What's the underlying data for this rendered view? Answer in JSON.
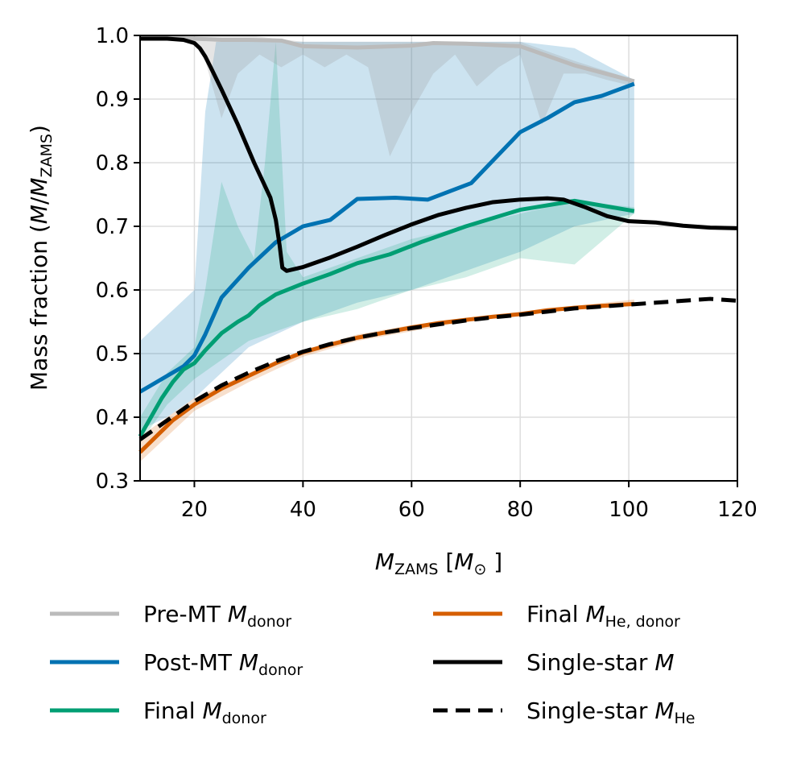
{
  "chart_data": {
    "type": "line",
    "title": "",
    "xlabel": {
      "base": "M",
      "sub": "ZAMS",
      "unit_open": " [",
      "unit_base": "M",
      "unit_sub": "⊙",
      "unit_close": " ]"
    },
    "ylabel": {
      "prefix": "Mass fraction (",
      "base1": "M",
      "slash": "/",
      "base2": "M",
      "sub": "ZAMS",
      "close": ")"
    },
    "xlim": [
      10,
      120
    ],
    "ylim": [
      0.3,
      1.0
    ],
    "xticks": [
      20,
      40,
      60,
      80,
      100,
      120
    ],
    "yticks": [
      0.3,
      0.4,
      0.5,
      0.6,
      0.7,
      0.8,
      0.9,
      1.0
    ],
    "xtick_labels": [
      "20",
      "40",
      "60",
      "80",
      "100",
      "120"
    ],
    "ytick_labels": [
      "0.3",
      "0.4",
      "0.5",
      "0.6",
      "0.7",
      "0.8",
      "0.9",
      "1.0"
    ],
    "grid": true,
    "legend_position": "below",
    "bands": [
      {
        "name": "post-mt-range",
        "color": "#0072B2",
        "opacity": 0.2,
        "upper": [
          [
            10,
            0.52
          ],
          [
            15,
            0.56
          ],
          [
            20,
            0.6
          ],
          [
            22,
            0.88
          ],
          [
            24,
            0.99
          ],
          [
            30,
            0.99
          ],
          [
            35,
            0.99
          ],
          [
            40,
            0.99
          ],
          [
            50,
            0.99
          ],
          [
            60,
            0.99
          ],
          [
            70,
            0.99
          ],
          [
            80,
            0.99
          ],
          [
            90,
            0.98
          ],
          [
            101,
            0.93
          ]
        ],
        "lower": [
          [
            10,
            0.38
          ],
          [
            15,
            0.4
          ],
          [
            20,
            0.43
          ],
          [
            25,
            0.47
          ],
          [
            30,
            0.51
          ],
          [
            40,
            0.55
          ],
          [
            50,
            0.58
          ],
          [
            60,
            0.6
          ],
          [
            70,
            0.63
          ],
          [
            80,
            0.66
          ],
          [
            90,
            0.7
          ],
          [
            101,
            0.72
          ]
        ]
      },
      {
        "name": "final-donor-range",
        "color": "#009E73",
        "opacity": 0.18,
        "upper": [
          [
            10,
            0.4
          ],
          [
            15,
            0.47
          ],
          [
            20,
            0.51
          ],
          [
            22,
            0.6
          ],
          [
            25,
            0.77
          ],
          [
            28,
            0.7
          ],
          [
            31,
            0.65
          ],
          [
            33,
            0.8
          ],
          [
            35,
            0.99
          ],
          [
            37,
            0.66
          ],
          [
            40,
            0.62
          ],
          [
            50,
            0.65
          ],
          [
            60,
            0.68
          ],
          [
            70,
            0.7
          ],
          [
            80,
            0.72
          ],
          [
            90,
            0.74
          ],
          [
            101,
            0.73
          ]
        ],
        "lower": [
          [
            10,
            0.36
          ],
          [
            15,
            0.42
          ],
          [
            20,
            0.46
          ],
          [
            25,
            0.49
          ],
          [
            30,
            0.52
          ],
          [
            40,
            0.55
          ],
          [
            50,
            0.57
          ],
          [
            60,
            0.6
          ],
          [
            70,
            0.62
          ],
          [
            80,
            0.65
          ],
          [
            90,
            0.64
          ],
          [
            101,
            0.72
          ]
        ]
      },
      {
        "name": "pre-mt-range",
        "color": "#999999",
        "opacity": 0.25,
        "upper": [
          [
            10,
            1.0
          ],
          [
            20,
            1.0
          ],
          [
            30,
            1.0
          ],
          [
            40,
            0.99
          ],
          [
            50,
            0.99
          ],
          [
            60,
            0.99
          ],
          [
            70,
            0.99
          ],
          [
            80,
            0.99
          ],
          [
            90,
            0.96
          ],
          [
            101,
            0.93
          ]
        ],
        "lower": [
          [
            10,
            0.995
          ],
          [
            20,
            0.99
          ],
          [
            22,
            0.96
          ],
          [
            25,
            0.87
          ],
          [
            28,
            0.94
          ],
          [
            32,
            0.97
          ],
          [
            36,
            0.95
          ],
          [
            40,
            0.97
          ],
          [
            44,
            0.95
          ],
          [
            48,
            0.97
          ],
          [
            52,
            0.95
          ],
          [
            56,
            0.81
          ],
          [
            60,
            0.88
          ],
          [
            64,
            0.94
          ],
          [
            68,
            0.97
          ],
          [
            72,
            0.92
          ],
          [
            76,
            0.95
          ],
          [
            80,
            0.97
          ],
          [
            84,
            0.86
          ],
          [
            88,
            0.94
          ],
          [
            92,
            0.94
          ],
          [
            96,
            0.93
          ],
          [
            101,
            0.92
          ]
        ]
      },
      {
        "name": "he-donor-range",
        "color": "#D55E00",
        "opacity": 0.2,
        "upper": [
          [
            10,
            0.37
          ],
          [
            15,
            0.4
          ],
          [
            20,
            0.43
          ],
          [
            30,
            0.47
          ],
          [
            40,
            0.505
          ],
          [
            50,
            0.53
          ],
          [
            60,
            0.545
          ],
          [
            70,
            0.555
          ],
          [
            80,
            0.565
          ],
          [
            90,
            0.575
          ],
          [
            101,
            0.585
          ]
        ],
        "lower": [
          [
            10,
            0.33
          ],
          [
            15,
            0.37
          ],
          [
            20,
            0.41
          ],
          [
            30,
            0.455
          ],
          [
            40,
            0.495
          ],
          [
            50,
            0.52
          ],
          [
            60,
            0.535
          ],
          [
            70,
            0.55
          ],
          [
            80,
            0.56
          ],
          [
            90,
            0.57
          ],
          [
            101,
            0.575
          ]
        ]
      }
    ],
    "series": [
      {
        "name": "pre-mt-line",
        "color": "#BBBBBB",
        "width": 5,
        "dash": "",
        "points": [
          [
            10,
            0.996
          ],
          [
            20,
            0.995
          ],
          [
            25,
            0.993
          ],
          [
            30,
            0.993
          ],
          [
            36,
            0.992
          ],
          [
            40,
            0.983
          ],
          [
            50,
            0.981
          ],
          [
            60,
            0.984
          ],
          [
            64,
            0.988
          ],
          [
            70,
            0.987
          ],
          [
            80,
            0.983
          ],
          [
            90,
            0.953
          ],
          [
            101,
            0.928
          ]
        ]
      },
      {
        "name": "post-mt-line",
        "color": "#0072B2",
        "width": 5,
        "dash": "",
        "points": [
          [
            10,
            0.44
          ],
          [
            12,
            0.45
          ],
          [
            15,
            0.465
          ],
          [
            18,
            0.48
          ],
          [
            20,
            0.497
          ],
          [
            22,
            0.53
          ],
          [
            25,
            0.588
          ],
          [
            30,
            0.635
          ],
          [
            35,
            0.675
          ],
          [
            40,
            0.7
          ],
          [
            45,
            0.71
          ],
          [
            50,
            0.743
          ],
          [
            57,
            0.745
          ],
          [
            63,
            0.742
          ],
          [
            71,
            0.768
          ],
          [
            80,
            0.848
          ],
          [
            85,
            0.87
          ],
          [
            90,
            0.895
          ],
          [
            95,
            0.905
          ],
          [
            101,
            0.924
          ]
        ]
      },
      {
        "name": "final-donor-line",
        "color": "#009E73",
        "width": 5,
        "dash": "",
        "points": [
          [
            10,
            0.37
          ],
          [
            12,
            0.4
          ],
          [
            14,
            0.43
          ],
          [
            16,
            0.455
          ],
          [
            18,
            0.475
          ],
          [
            20,
            0.485
          ],
          [
            22,
            0.505
          ],
          [
            25,
            0.532
          ],
          [
            28,
            0.55
          ],
          [
            30,
            0.56
          ],
          [
            32,
            0.576
          ],
          [
            35,
            0.593
          ],
          [
            40,
            0.61
          ],
          [
            45,
            0.625
          ],
          [
            50,
            0.642
          ],
          [
            56,
            0.656
          ],
          [
            62,
            0.676
          ],
          [
            70,
            0.7
          ],
          [
            80,
            0.726
          ],
          [
            90,
            0.74
          ],
          [
            101,
            0.724
          ]
        ]
      },
      {
        "name": "he-donor-line",
        "color": "#D55E00",
        "width": 5,
        "dash": "",
        "points": [
          [
            10,
            0.345
          ],
          [
            13,
            0.37
          ],
          [
            16,
            0.395
          ],
          [
            20,
            0.42
          ],
          [
            25,
            0.445
          ],
          [
            30,
            0.465
          ],
          [
            35,
            0.485
          ],
          [
            40,
            0.502
          ],
          [
            45,
            0.514
          ],
          [
            50,
            0.525
          ],
          [
            55,
            0.533
          ],
          [
            60,
            0.541
          ],
          [
            65,
            0.548
          ],
          [
            70,
            0.553
          ],
          [
            75,
            0.558
          ],
          [
            80,
            0.562
          ],
          [
            85,
            0.568
          ],
          [
            90,
            0.572
          ],
          [
            95,
            0.575
          ],
          [
            101,
            0.578
          ]
        ]
      },
      {
        "name": "single-star-line",
        "color": "#000000",
        "width": 5,
        "dash": "",
        "points": [
          [
            10,
            0.995
          ],
          [
            15,
            0.995
          ],
          [
            18,
            0.993
          ],
          [
            20,
            0.988
          ],
          [
            21,
            0.98
          ],
          [
            22,
            0.967
          ],
          [
            23,
            0.95
          ],
          [
            25,
            0.915
          ],
          [
            28,
            0.86
          ],
          [
            31,
            0.8
          ],
          [
            34,
            0.745
          ],
          [
            35,
            0.71
          ],
          [
            35.7,
            0.67
          ],
          [
            36.2,
            0.635
          ],
          [
            37,
            0.63
          ],
          [
            40,
            0.636
          ],
          [
            45,
            0.651
          ],
          [
            50,
            0.668
          ],
          [
            55,
            0.686
          ],
          [
            60,
            0.703
          ],
          [
            65,
            0.718
          ],
          [
            70,
            0.729
          ],
          [
            75,
            0.738
          ],
          [
            80,
            0.742
          ],
          [
            85,
            0.744
          ],
          [
            88,
            0.742
          ],
          [
            92,
            0.73
          ],
          [
            96,
            0.716
          ],
          [
            100,
            0.708
          ],
          [
            105,
            0.706
          ],
          [
            110,
            0.701
          ],
          [
            115,
            0.698
          ],
          [
            120,
            0.697
          ]
        ]
      },
      {
        "name": "single-star-he-line",
        "color": "#000000",
        "width": 5,
        "dash": "18,10",
        "points": [
          [
            10,
            0.365
          ],
          [
            15,
            0.395
          ],
          [
            20,
            0.425
          ],
          [
            25,
            0.45
          ],
          [
            30,
            0.47
          ],
          [
            35,
            0.488
          ],
          [
            40,
            0.503
          ],
          [
            45,
            0.515
          ],
          [
            50,
            0.525
          ],
          [
            55,
            0.533
          ],
          [
            60,
            0.54
          ],
          [
            65,
            0.546
          ],
          [
            70,
            0.552
          ],
          [
            75,
            0.557
          ],
          [
            80,
            0.561
          ],
          [
            85,
            0.566
          ],
          [
            90,
            0.571
          ],
          [
            95,
            0.574
          ],
          [
            100,
            0.577
          ],
          [
            105,
            0.58
          ],
          [
            110,
            0.583
          ],
          [
            115,
            0.586
          ],
          [
            120,
            0.583
          ]
        ]
      }
    ],
    "legend": [
      {
        "name": "legend-pre-mt",
        "color": "#BBBBBB",
        "dash": "",
        "text": "Pre-MT ",
        "italic": "M",
        "sub": "donor"
      },
      {
        "name": "legend-post-mt",
        "color": "#0072B2",
        "dash": "",
        "text": "Post-MT ",
        "italic": "M",
        "sub": "donor"
      },
      {
        "name": "legend-final-donor",
        "color": "#009E73",
        "dash": "",
        "text": "Final ",
        "italic": "M",
        "sub": "donor"
      },
      {
        "name": "legend-final-he-donor",
        "color": "#D55E00",
        "dash": "",
        "text": "Final ",
        "italic": "M",
        "sub": "He, donor"
      },
      {
        "name": "legend-single-star",
        "color": "#000000",
        "dash": "",
        "text": "Single-star ",
        "italic": "M",
        "sub": ""
      },
      {
        "name": "legend-single-star-he",
        "color": "#000000",
        "dash": "18,10",
        "text": "Single-star ",
        "italic": "M",
        "sub": "He"
      }
    ]
  }
}
